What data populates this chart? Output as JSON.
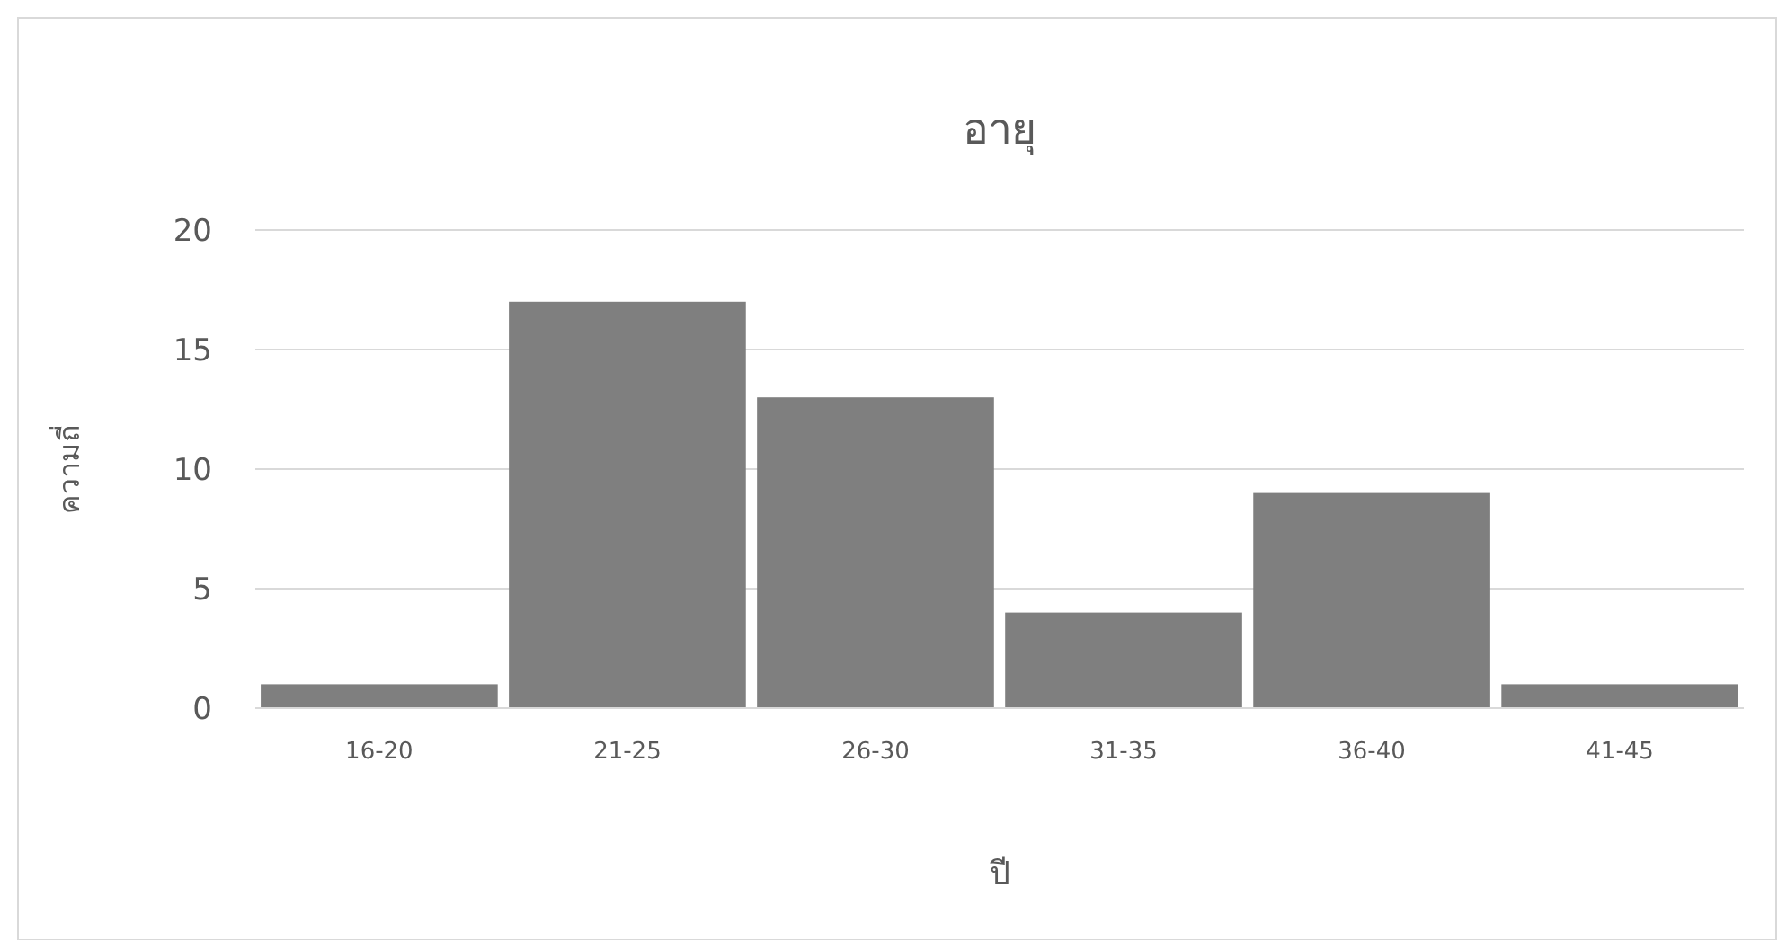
{
  "chart_data": {
    "type": "bar",
    "title": "อายุ",
    "xlabel": "ปี",
    "ylabel": "ความถี่",
    "categories": [
      "16-20",
      "21-25",
      "26-30",
      "31-35",
      "36-40",
      "41-45"
    ],
    "values": [
      1,
      17,
      13,
      4,
      9,
      1
    ],
    "color": "#7f7f7f",
    "ylim": [
      0,
      20
    ],
    "yticks": [
      0,
      5,
      10,
      15,
      20
    ],
    "grid": "y"
  }
}
